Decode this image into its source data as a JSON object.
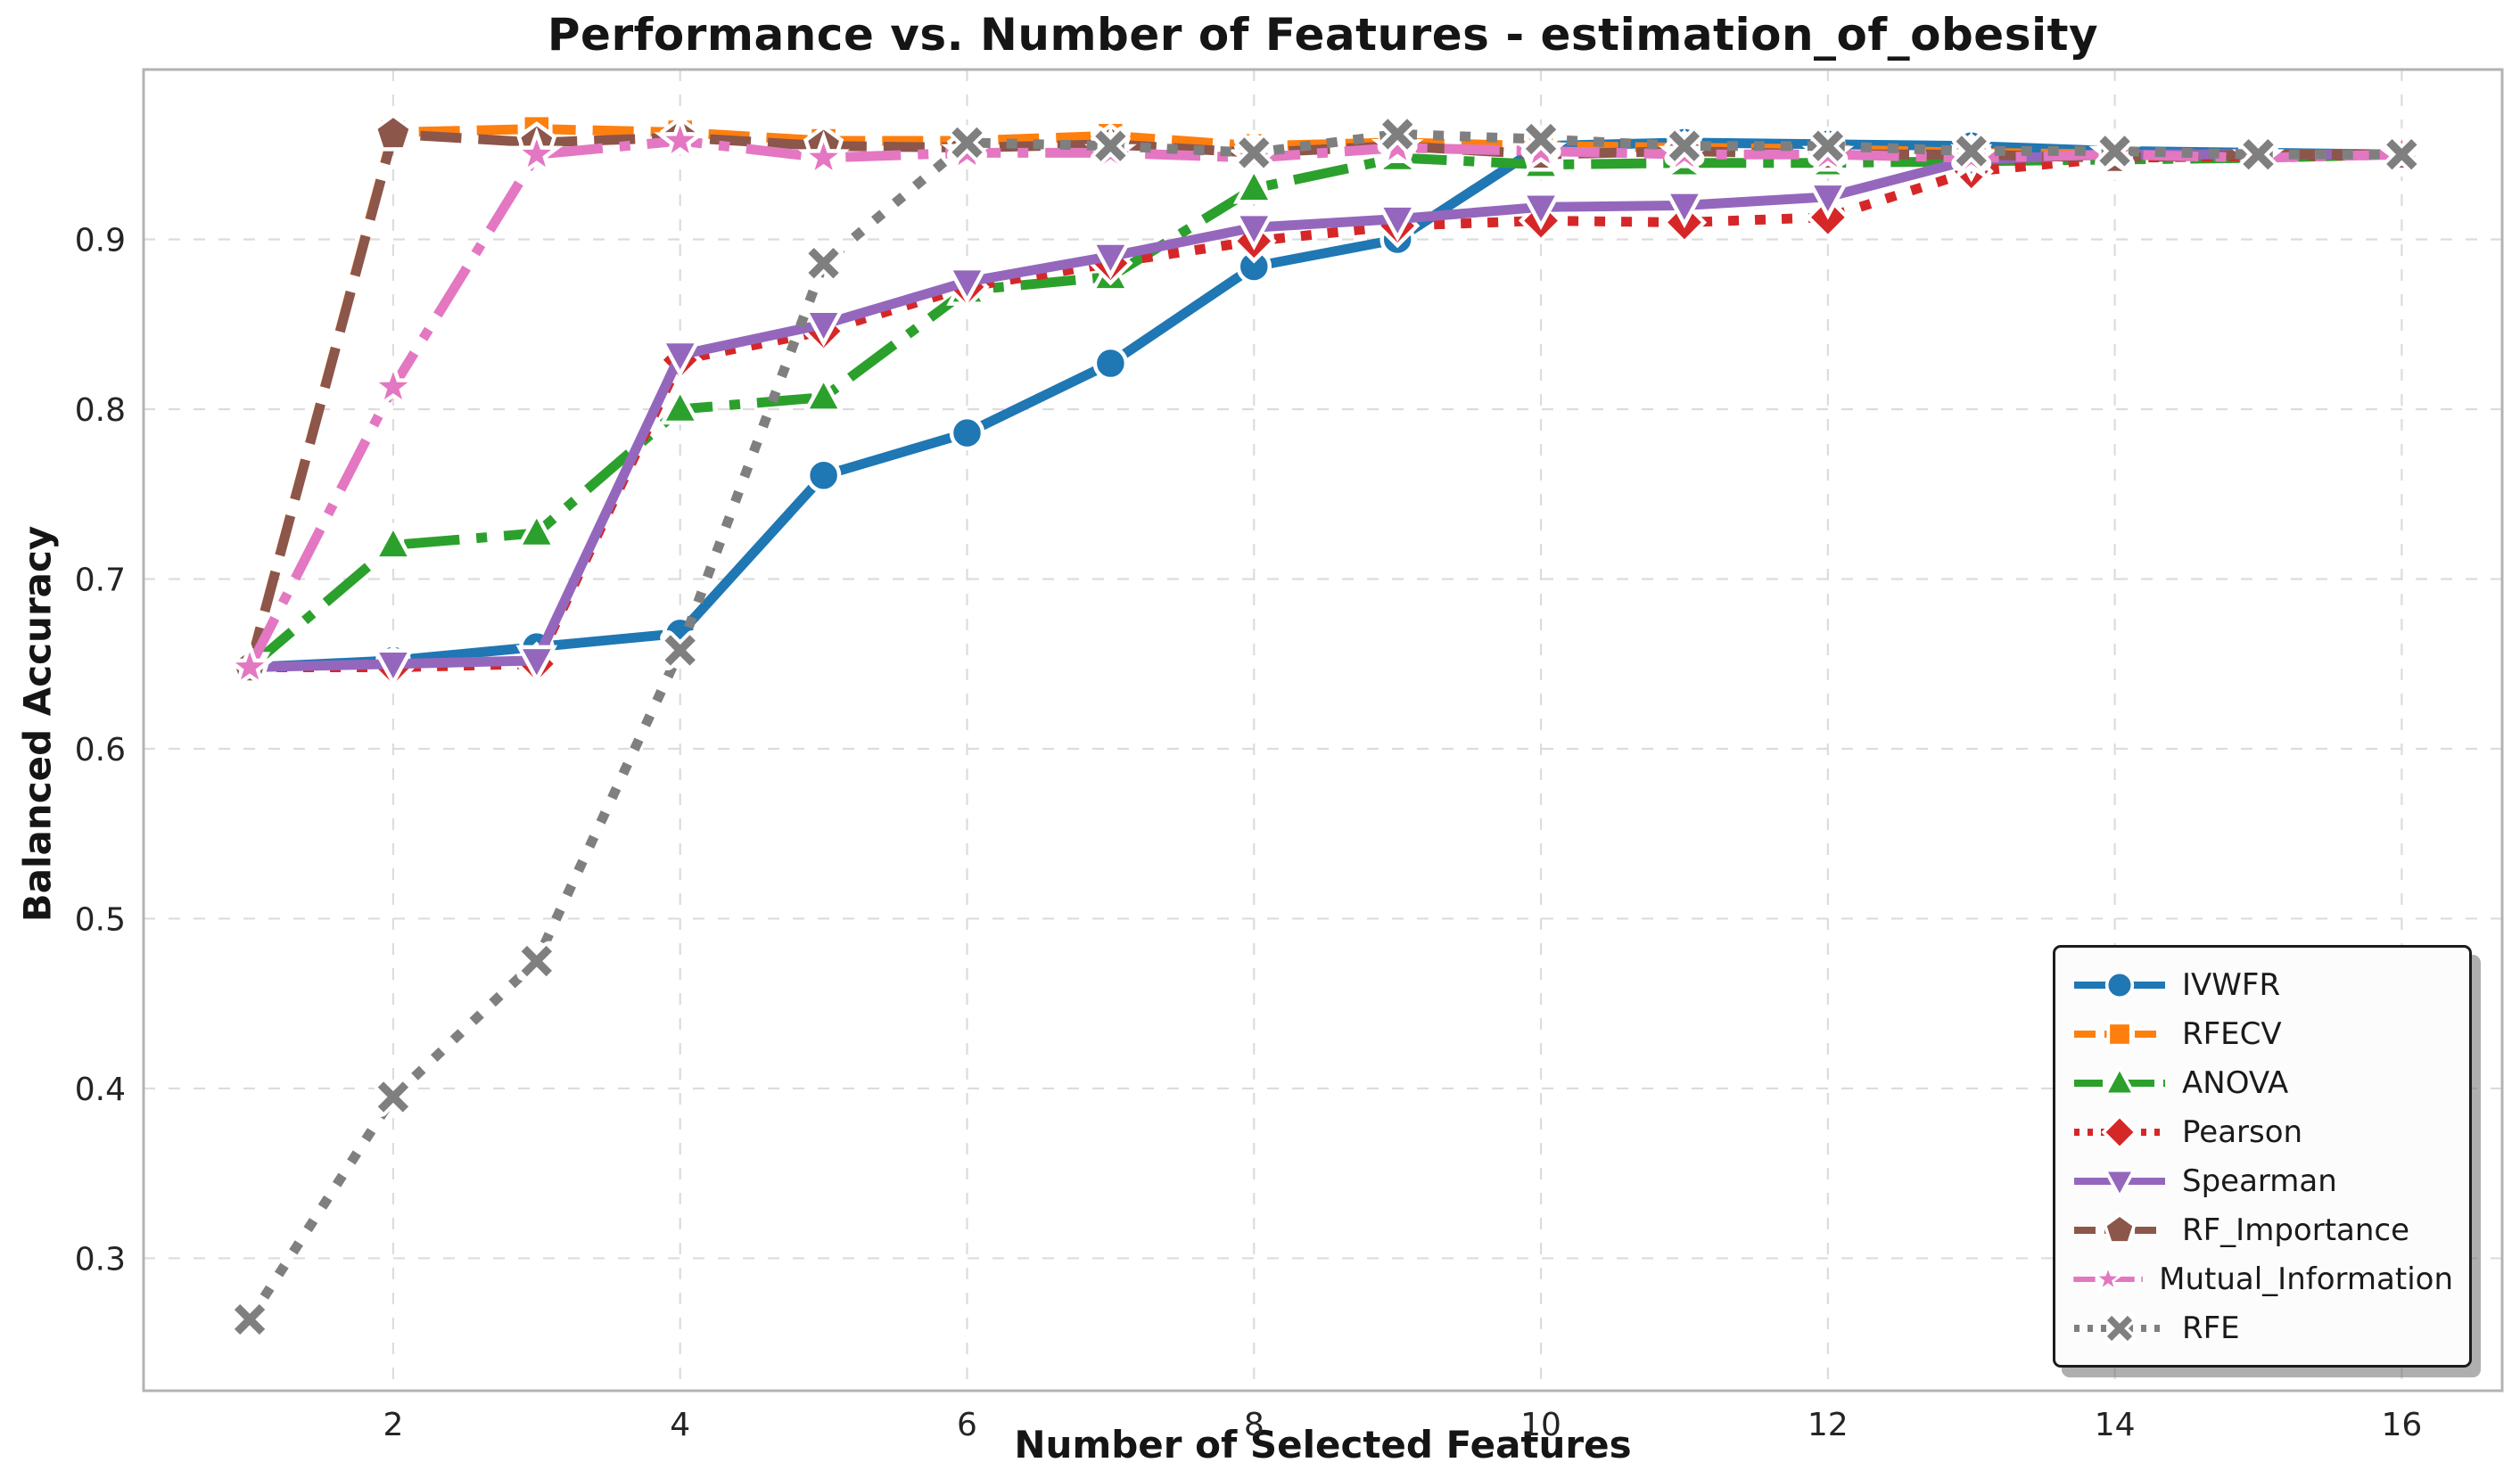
{
  "figure": {
    "title": "Performance vs. Number of Features - estimation_of_obesity",
    "xlabel": "Number of Selected Features",
    "ylabel": "Balanced Accuracy"
  },
  "chart_data": {
    "type": "line",
    "title": "Performance vs. Number of Features - estimation_of_obesity",
    "xlabel": "Number of Selected Features",
    "ylabel": "Balanced Accuracy",
    "x": [
      1,
      2,
      3,
      4,
      5,
      6,
      7,
      8,
      9,
      10,
      11,
      12,
      13,
      14,
      15,
      16
    ],
    "x_ticks": [
      2,
      4,
      6,
      8,
      10,
      12,
      14,
      16
    ],
    "y_ticks": [
      0.3,
      0.4,
      0.5,
      0.6,
      0.7,
      0.8,
      0.9
    ],
    "xlim": [
      0.26,
      16.7
    ],
    "ylim": [
      0.222,
      1.0
    ],
    "grid": true,
    "grid_style": "dashed",
    "legend_position": "lower right",
    "series": [
      {
        "name": "IVWFR",
        "color": "#1f77b4",
        "linestyle": "solid",
        "marker": "circle",
        "values": [
          0.648,
          0.652,
          0.66,
          0.668,
          0.761,
          0.786,
          0.827,
          0.884,
          0.9,
          0.955,
          0.957,
          0.956,
          0.955,
          0.952,
          0.951,
          0.95
        ]
      },
      {
        "name": "RFECV",
        "color": "#ff7f0e",
        "linestyle": "dashed",
        "marker": "square",
        "values": [
          0.648,
          0.963,
          0.965,
          0.963,
          0.958,
          0.958,
          0.961,
          0.955,
          0.957,
          0.955,
          0.954,
          0.953,
          0.951,
          0.95,
          0.95,
          0.95
        ]
      },
      {
        "name": "ANOVA",
        "color": "#2ca02c",
        "linestyle": "dashdot",
        "marker": "triangle-up",
        "values": [
          0.648,
          0.72,
          0.727,
          0.8,
          0.807,
          0.87,
          0.878,
          0.93,
          0.948,
          0.944,
          0.945,
          0.945,
          0.946,
          0.947,
          0.948,
          0.95
        ]
      },
      {
        "name": "Pearson",
        "color": "#d62728",
        "linestyle": "dotted",
        "marker": "diamond",
        "values": [
          0.648,
          0.648,
          0.65,
          0.829,
          0.846,
          0.872,
          0.886,
          0.899,
          0.908,
          0.911,
          0.91,
          0.913,
          0.94,
          0.948,
          0.949,
          0.95
        ]
      },
      {
        "name": "Spearman",
        "color": "#9467bd",
        "linestyle": "solid",
        "marker": "triangle-down",
        "values": [
          0.648,
          0.65,
          0.652,
          0.832,
          0.85,
          0.875,
          0.89,
          0.907,
          0.912,
          0.919,
          0.92,
          0.925,
          0.947,
          0.95,
          0.95,
          0.95
        ]
      },
      {
        "name": "RF_Importance",
        "color": "#8c564b",
        "linestyle": "dashed",
        "marker": "pentagon",
        "values": [
          0.648,
          0.962,
          0.957,
          0.96,
          0.955,
          0.954,
          0.956,
          0.951,
          0.955,
          0.95,
          0.952,
          0.95,
          0.95,
          0.948,
          0.95,
          0.95
        ]
      },
      {
        "name": "Mutual_Information",
        "color": "#e377c2",
        "linestyle": "dashdot",
        "marker": "star",
        "values": [
          0.648,
          0.813,
          0.95,
          0.958,
          0.948,
          0.951,
          0.951,
          0.948,
          0.954,
          0.952,
          0.95,
          0.95,
          0.948,
          0.95,
          0.948,
          0.95
        ]
      },
      {
        "name": "RFE",
        "color": "#7f7f7f",
        "linestyle": "dotted",
        "marker": "x",
        "values": [
          0.264,
          0.395,
          0.475,
          0.658,
          0.886,
          0.957,
          0.955,
          0.951,
          0.962,
          0.959,
          0.955,
          0.955,
          0.952,
          0.952,
          0.95,
          0.95
        ]
      }
    ]
  }
}
